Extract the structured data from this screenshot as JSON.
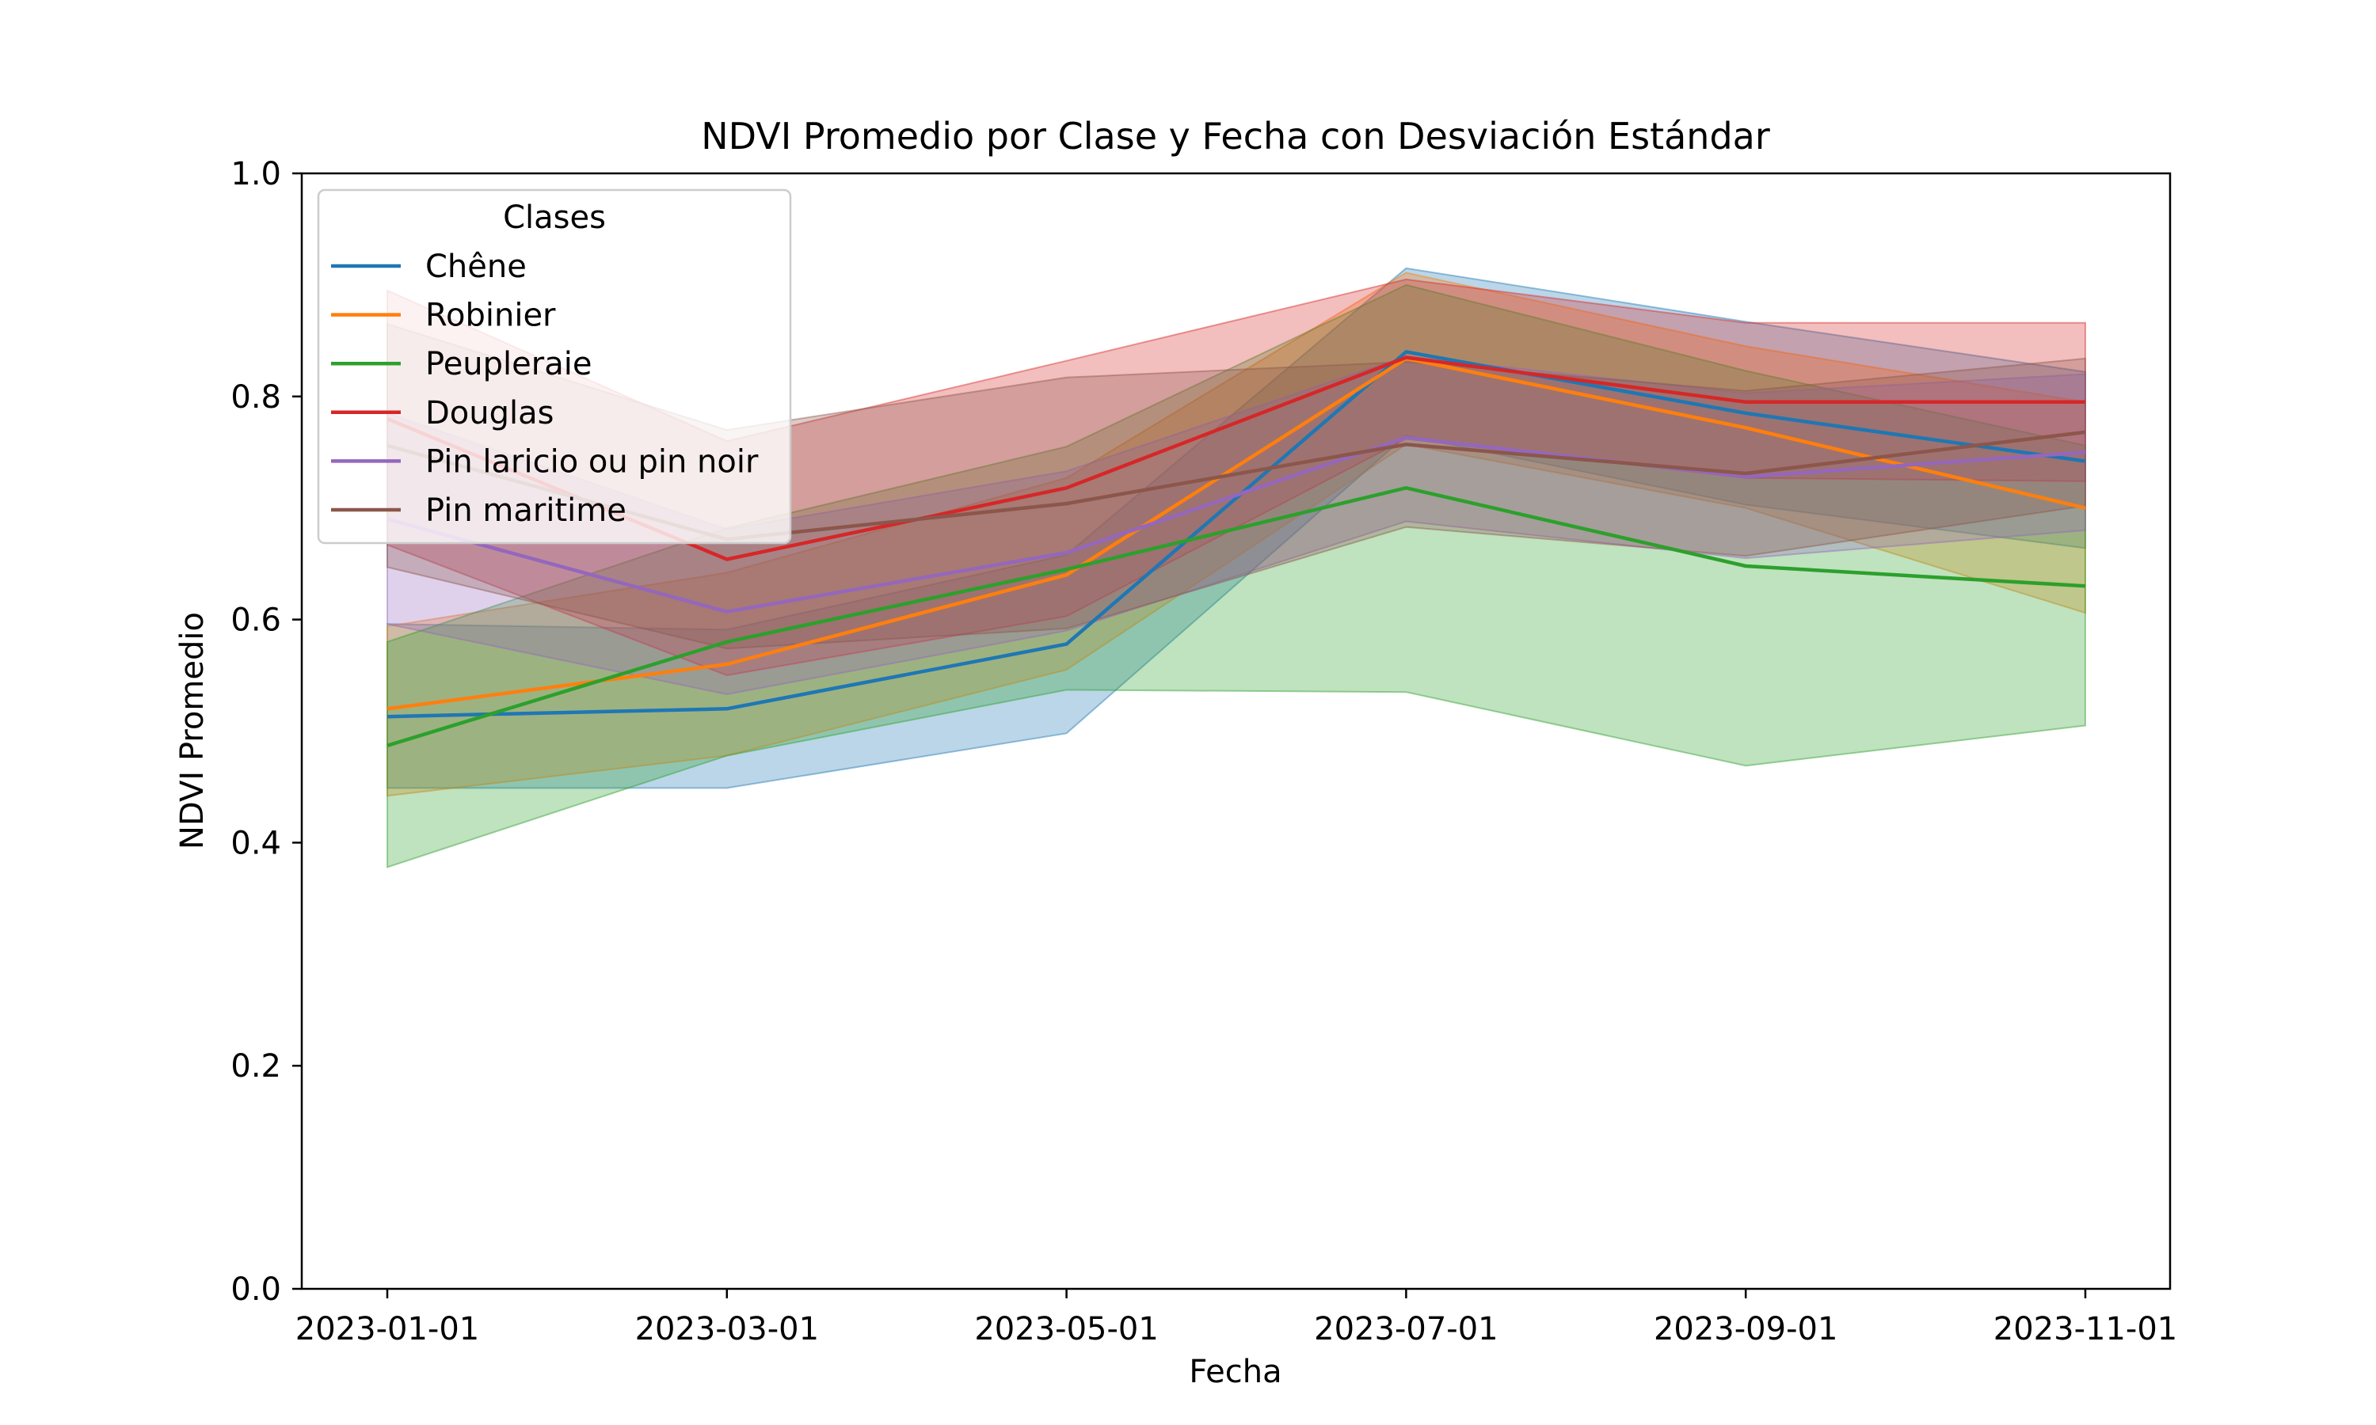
{
  "chart_data": {
    "type": "line",
    "title": "NDVI Promedio por Clase y Fecha con Desviación Estándar",
    "xlabel": "Fecha",
    "ylabel": "NDVI Promedio",
    "x": [
      "2023-01-01",
      "2023-03-01",
      "2023-05-01",
      "2023-07-01",
      "2023-09-01",
      "2023-11-01"
    ],
    "ylim": [
      0.0,
      1.0
    ],
    "yticks": [
      "0.0",
      "0.2",
      "0.4",
      "0.6",
      "0.8",
      "1.0"
    ],
    "grid": false,
    "legend": {
      "title": "Clases",
      "placement": "top-left"
    },
    "bands": "shaded area = mean ± standard deviation",
    "series": [
      {
        "name": "Chêne",
        "color": "#1f77b4",
        "values": [
          0.513,
          0.52,
          0.578,
          0.84,
          0.785,
          0.742
        ],
        "lower": [
          0.449,
          0.449,
          0.498,
          0.765,
          0.703,
          0.664
        ],
        "upper": [
          0.596,
          0.591,
          0.658,
          0.915,
          0.867,
          0.822
        ]
      },
      {
        "name": "Robinier",
        "color": "#ff7f0e",
        "values": [
          0.52,
          0.56,
          0.64,
          0.834,
          0.772,
          0.7
        ],
        "lower": [
          0.442,
          0.478,
          0.555,
          0.757,
          0.7,
          0.606
        ],
        "upper": [
          0.594,
          0.642,
          0.727,
          0.911,
          0.845,
          0.795
        ]
      },
      {
        "name": "Peupleraie",
        "color": "#2ca02c",
        "values": [
          0.487,
          0.58,
          0.645,
          0.718,
          0.648,
          0.63
        ],
        "lower": [
          0.378,
          0.478,
          0.537,
          0.535,
          0.469,
          0.505
        ],
        "upper": [
          0.58,
          0.682,
          0.755,
          0.9,
          0.823,
          0.756
        ]
      },
      {
        "name": "Douglas",
        "color": "#d62728",
        "values": [
          0.78,
          0.654,
          0.718,
          0.835,
          0.795,
          0.795
        ],
        "lower": [
          0.667,
          0.55,
          0.603,
          0.762,
          0.727,
          0.724
        ],
        "upper": [
          0.895,
          0.76,
          0.832,
          0.905,
          0.866,
          0.866
        ]
      },
      {
        "name": "Pin laricio ou pin noir",
        "color": "#9467bd",
        "values": [
          0.69,
          0.607,
          0.66,
          0.763,
          0.728,
          0.75
        ],
        "lower": [
          0.596,
          0.533,
          0.59,
          0.688,
          0.655,
          0.68
        ],
        "upper": [
          0.785,
          0.681,
          0.733,
          0.836,
          0.803,
          0.82
        ]
      },
      {
        "name": "Pin maritime",
        "color": "#8c564b",
        "values": [
          0.756,
          0.672,
          0.704,
          0.757,
          0.731,
          0.768
        ],
        "lower": [
          0.647,
          0.574,
          0.592,
          0.683,
          0.657,
          0.702
        ],
        "upper": [
          0.865,
          0.77,
          0.817,
          0.831,
          0.805,
          0.834
        ]
      }
    ]
  }
}
